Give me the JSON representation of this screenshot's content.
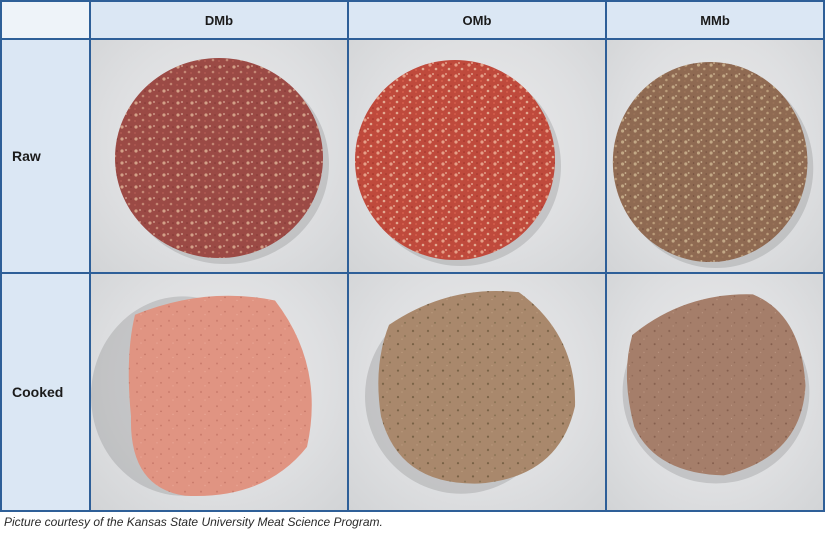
{
  "table": {
    "columns": [
      "DMb",
      "OMb",
      "MMb"
    ],
    "rows": [
      "Raw",
      "Cooked"
    ],
    "cells": [
      [
        {
          "depicts": "raw-patty-dmb",
          "color": "#9b4a45"
        },
        {
          "depicts": "raw-patty-omb",
          "color": "#bf4a3c"
        },
        {
          "depicts": "raw-patty-mmb",
          "color": "#8f6a52"
        }
      ],
      [
        {
          "depicts": "cooked-patty-dmb",
          "color": "#e09482"
        },
        {
          "depicts": "cooked-patty-omb",
          "color": "#a9886c"
        },
        {
          "depicts": "cooked-patty-mmb",
          "color": "#a57e6a"
        }
      ]
    ]
  },
  "caption": "Picture courtesy of the Kansas State University Meat Science Program.",
  "colors": {
    "border": "#2e5f98",
    "header_bg": "#dbe7f4",
    "photo_bg": "#dedfe1"
  }
}
